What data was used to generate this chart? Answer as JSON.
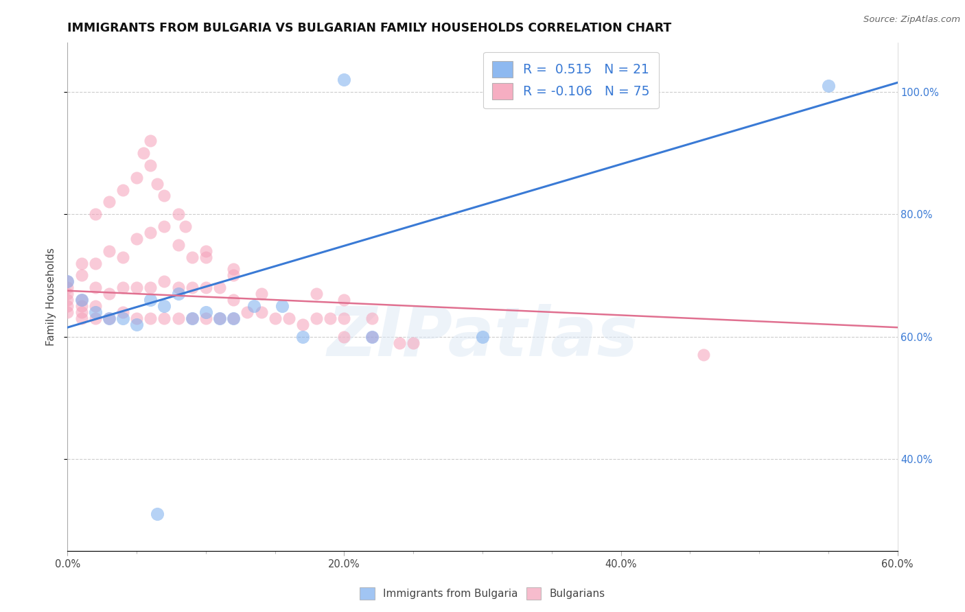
{
  "title": "IMMIGRANTS FROM BULGARIA VS BULGARIAN FAMILY HOUSEHOLDS CORRELATION CHART",
  "source": "Source: ZipAtlas.com",
  "ylabel": "Family Households",
  "xlim": [
    0.0,
    0.6
  ],
  "ylim": [
    0.25,
    1.08
  ],
  "grid_color": "#cccccc",
  "background_color": "#ffffff",
  "blue_color": "#7aadee",
  "pink_color": "#f5a0b8",
  "legend_R1": "0.515",
  "legend_N1": "21",
  "legend_R2": "-0.106",
  "legend_N2": "75",
  "watermark": "ZIPatlas",
  "blue_line_x": [
    0.0,
    0.6
  ],
  "blue_line_y": [
    0.615,
    1.015
  ],
  "pink_line_x": [
    0.0,
    0.6
  ],
  "pink_line_y": [
    0.675,
    0.615
  ],
  "blue_scatter_x": [
    0.0,
    0.01,
    0.02,
    0.03,
    0.04,
    0.05,
    0.06,
    0.07,
    0.08,
    0.09,
    0.1,
    0.11,
    0.12,
    0.135,
    0.155,
    0.17,
    0.2,
    0.22,
    0.3,
    0.55,
    0.065
  ],
  "blue_scatter_y": [
    0.69,
    0.66,
    0.64,
    0.63,
    0.63,
    0.62,
    0.66,
    0.65,
    0.67,
    0.63,
    0.64,
    0.63,
    0.63,
    0.65,
    0.65,
    0.6,
    1.02,
    0.6,
    0.6,
    1.01,
    0.31
  ],
  "pink_scatter_x": [
    0.0,
    0.0,
    0.0,
    0.0,
    0.0,
    0.0,
    0.01,
    0.01,
    0.01,
    0.01,
    0.01,
    0.01,
    0.02,
    0.02,
    0.02,
    0.02,
    0.02,
    0.03,
    0.03,
    0.03,
    0.03,
    0.04,
    0.04,
    0.04,
    0.04,
    0.05,
    0.05,
    0.05,
    0.05,
    0.06,
    0.06,
    0.06,
    0.06,
    0.07,
    0.07,
    0.07,
    0.07,
    0.08,
    0.08,
    0.08,
    0.08,
    0.09,
    0.09,
    0.09,
    0.1,
    0.1,
    0.1,
    0.11,
    0.11,
    0.12,
    0.12,
    0.12,
    0.13,
    0.14,
    0.15,
    0.16,
    0.17,
    0.18,
    0.19,
    0.2,
    0.2,
    0.22,
    0.22,
    0.24,
    0.25,
    0.055,
    0.065,
    0.085,
    0.1,
    0.12,
    0.14,
    0.18,
    0.2,
    0.46,
    0.06
  ],
  "pink_scatter_y": [
    0.64,
    0.65,
    0.66,
    0.67,
    0.68,
    0.69,
    0.63,
    0.64,
    0.65,
    0.66,
    0.7,
    0.72,
    0.63,
    0.65,
    0.68,
    0.72,
    0.8,
    0.63,
    0.67,
    0.74,
    0.82,
    0.64,
    0.68,
    0.73,
    0.84,
    0.63,
    0.68,
    0.76,
    0.86,
    0.63,
    0.68,
    0.77,
    0.88,
    0.63,
    0.69,
    0.78,
    0.83,
    0.63,
    0.68,
    0.75,
    0.8,
    0.63,
    0.68,
    0.73,
    0.63,
    0.68,
    0.74,
    0.63,
    0.68,
    0.63,
    0.66,
    0.71,
    0.64,
    0.64,
    0.63,
    0.63,
    0.62,
    0.63,
    0.63,
    0.6,
    0.63,
    0.6,
    0.63,
    0.59,
    0.59,
    0.9,
    0.85,
    0.78,
    0.73,
    0.7,
    0.67,
    0.67,
    0.66,
    0.57,
    0.92
  ]
}
